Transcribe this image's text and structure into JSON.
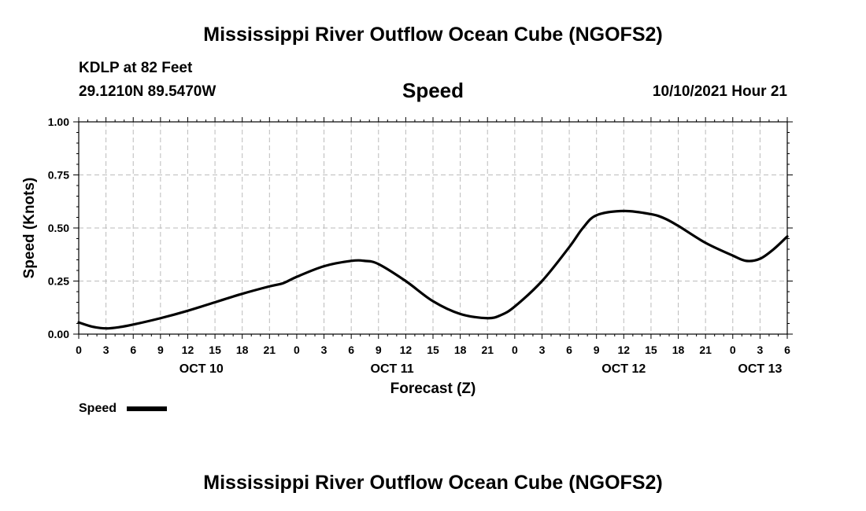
{
  "page": {
    "top_title": "Mississippi River Outflow Ocean Cube (NGOFS2)",
    "bottom_title": "Mississippi River Outflow Ocean Cube (NGOFS2)",
    "station": "KDLP at 82 Feet",
    "coords": "29.1210N  89.5470W",
    "variable": "Speed",
    "timestamp": "10/10/2021 Hour 21"
  },
  "chart_data": {
    "type": "line",
    "title": "Speed",
    "xlabel": "Forecast (Z)",
    "ylabel": "Speed (Knots)",
    "ylim": [
      0,
      1.0
    ],
    "yticks": [
      "0.00",
      "0.25",
      "0.50",
      "0.75",
      "1.00"
    ],
    "xlim": [
      0,
      78
    ],
    "x_unit": "hours from Oct 10 00Z",
    "xticks": [
      "0",
      "3",
      "6",
      "9",
      "12",
      "15",
      "18",
      "21",
      "0",
      "3",
      "6",
      "9",
      "12",
      "15",
      "18",
      "21",
      "0",
      "3",
      "6",
      "9",
      "12",
      "15",
      "18",
      "21",
      "0",
      "3",
      "6"
    ],
    "date_labels": [
      {
        "label": "OCT 10",
        "hour": 13.5
      },
      {
        "label": "OCT 11",
        "hour": 34.5
      },
      {
        "label": "OCT 12",
        "hour": 60.0
      },
      {
        "label": "OCT 13",
        "hour": 75.0
      }
    ],
    "grid": true,
    "legend": {
      "label": "Speed",
      "position": "bottom-left"
    },
    "series": [
      {
        "name": "Speed",
        "color": "#000000",
        "x": [
          0,
          1.5,
          3,
          4.5,
          6,
          9,
          12,
          15,
          18,
          21,
          22.5,
          24,
          27,
          30,
          31.5,
          33,
          36,
          39,
          42,
          45,
          46.5,
          48,
          51,
          54,
          55.5,
          57,
          60,
          63,
          64.5,
          66,
          69,
          72,
          73.5,
          75,
          76.5,
          78
        ],
        "y": [
          0.055,
          0.035,
          0.027,
          0.033,
          0.045,
          0.075,
          0.11,
          0.15,
          0.19,
          0.225,
          0.24,
          0.27,
          0.32,
          0.345,
          0.345,
          0.33,
          0.25,
          0.155,
          0.095,
          0.075,
          0.09,
          0.13,
          0.25,
          0.41,
          0.5,
          0.56,
          0.58,
          0.565,
          0.545,
          0.51,
          0.43,
          0.37,
          0.345,
          0.355,
          0.4,
          0.46
        ]
      }
    ]
  }
}
